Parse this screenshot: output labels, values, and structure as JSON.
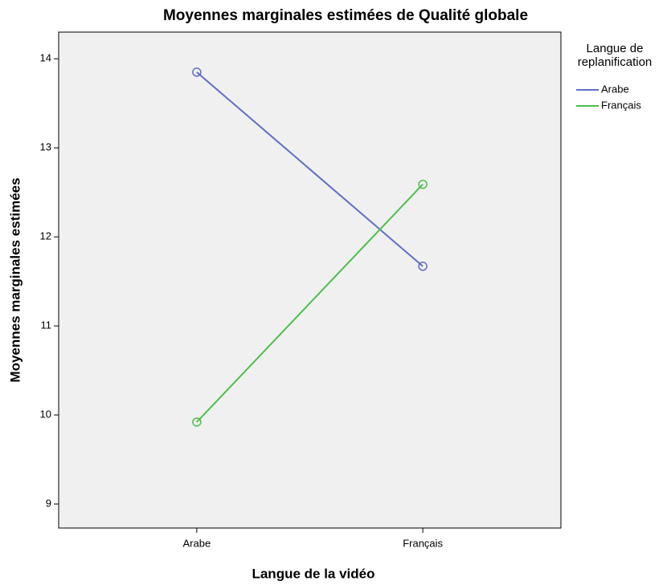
{
  "chart_data": {
    "type": "line",
    "title": "Moyennes marginales estimées de Qualité globale",
    "x_label": "Langue de la vidéo",
    "y_label": "Moyennes marginales estimées",
    "legend_title": "Langue de replanification",
    "categories": [
      "Arabe",
      "Français"
    ],
    "series": [
      {
        "name": "Arabe",
        "color": "#5f6fc6",
        "values": [
          13.85,
          11.67
        ]
      },
      {
        "name": "Français",
        "color": "#4cbf4c",
        "values": [
          9.92,
          12.59
        ]
      }
    ],
    "ylim": [
      8.73,
      14.3
    ],
    "yticks": [
      9,
      10,
      11,
      12,
      13,
      14
    ],
    "legend": "right",
    "grid": false,
    "background": "#f0f0f0"
  }
}
